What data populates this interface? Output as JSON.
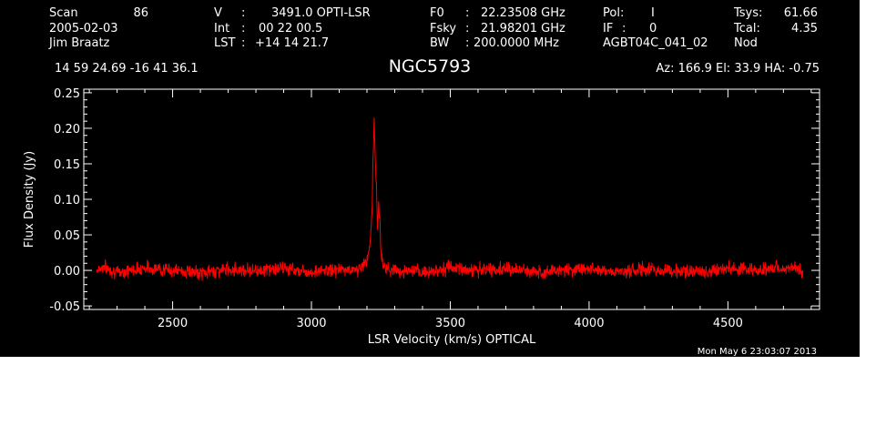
{
  "header": {
    "row1": {
      "scan_label": "Scan",
      "scan_value": "86",
      "v_label": "V",
      "v_sep": ":",
      "v_value": "3491.0 OPTI-LSR",
      "f0_label": "F0",
      "f0_sep": ":",
      "f0_value": "22.23508 GHz",
      "pol_label": "Pol:",
      "pol_value": "I",
      "tsys_label": "Tsys:",
      "tsys_value": "61.66"
    },
    "row2": {
      "date": "2005-02-03",
      "int_label": "Int",
      "int_sep": ":",
      "int_value": "00 22 00.5",
      "fsky_label": "Fsky",
      "fsky_sep": ":",
      "fsky_value": "21.98201 GHz",
      "if_label": "IF",
      "if_sep": ":",
      "if_value": "0",
      "tcal_label": "Tcal:",
      "tcal_value": "4.35"
    },
    "row3": {
      "observer": "Jim Braatz",
      "lst_label": "LST",
      "lst_sep": ":",
      "lst_value": "+14 14 21.7",
      "bw_label": "BW",
      "bw_sep": ":",
      "bw_value": "200.0000 MHz",
      "project": "AGBT04C_041_02",
      "mode": "Nod"
    },
    "row4": {
      "coords": "14 59 24.69  -16 41 36.1",
      "object": "NGC5793",
      "pointing": "Az: 166.9  El: 33.9  HA: -0.75"
    }
  },
  "timestamp": "Mon May  6 23:03:07 2013",
  "chart_data": {
    "type": "line",
    "xlabel": "LSR Velocity (km/s) OPTICAL",
    "ylabel": "Flux Density (Jy)",
    "xlim": [
      2180,
      4830
    ],
    "ylim": [
      -0.055,
      0.255
    ],
    "x_ticks": [
      2500,
      3000,
      3500,
      4000,
      4500
    ],
    "y_ticks": [
      -0.05,
      0.0,
      0.05,
      0.1,
      0.15,
      0.2,
      0.25
    ],
    "x_tick_labels": [
      "2500",
      "3000",
      "3500",
      "4000",
      "4500"
    ],
    "y_tick_labels": [
      "-0.05",
      "0.00",
      "0.05",
      "0.10",
      "0.15",
      "0.20",
      "0.25"
    ],
    "grid": false,
    "line_color": "#ff0000",
    "axis_color": "#ffffff",
    "background": "#000000",
    "series": [
      {
        "x": [
          2225,
          2250,
          2300,
          2400,
          2500,
          2600,
          2700,
          2800,
          2900,
          3000,
          3100,
          3150,
          3180,
          3200,
          3210,
          3218,
          3222,
          3226,
          3230,
          3234,
          3238,
          3242,
          3246,
          3250,
          3260,
          3280,
          3300,
          3400,
          3500,
          3600,
          3700,
          3800,
          3900,
          4000,
          4100,
          4200,
          4300,
          4400,
          4500,
          4600,
          4700,
          4770
        ],
        "y": [
          0.0,
          0.005,
          -0.003,
          0.004,
          0.0,
          -0.004,
          0.002,
          0.0,
          0.003,
          -0.002,
          0.001,
          0.0,
          0.004,
          0.015,
          0.03,
          0.08,
          0.16,
          0.212,
          0.15,
          0.12,
          0.06,
          0.095,
          0.07,
          0.03,
          0.005,
          0.002,
          0.0,
          -0.003,
          0.004,
          0.0,
          0.002,
          -0.002,
          0.0,
          0.003,
          -0.002,
          0.001,
          0.0,
          -0.002,
          0.003,
          0.0,
          0.004,
          0.0
        ]
      }
    ]
  }
}
